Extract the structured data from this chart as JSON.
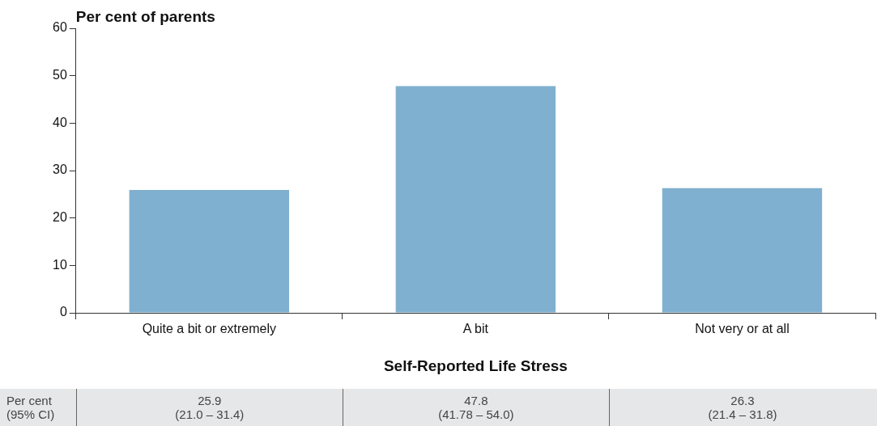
{
  "chart_data": {
    "type": "bar",
    "ylabel": "Per cent of parents",
    "xlabel": "Self-Reported Life Stress",
    "categories": [
      "Quite a bit or extremely",
      "A bit",
      "Not very or at all"
    ],
    "values": [
      25.9,
      47.8,
      26.3
    ],
    "color": "#80b0cf",
    "ylim": [
      0,
      60
    ],
    "yticks": [
      0,
      10,
      20,
      30,
      40,
      50,
      60
    ],
    "grid": false,
    "legend": false,
    "value_labels": [
      "25.9\n(21.0 – 31.4)",
      "47.8\n(41.78 – 54.0)",
      "26.3\n(21.4 – 31.8)"
    ],
    "annotations": [
      "Per cent\n(95% CI)"
    ]
  }
}
